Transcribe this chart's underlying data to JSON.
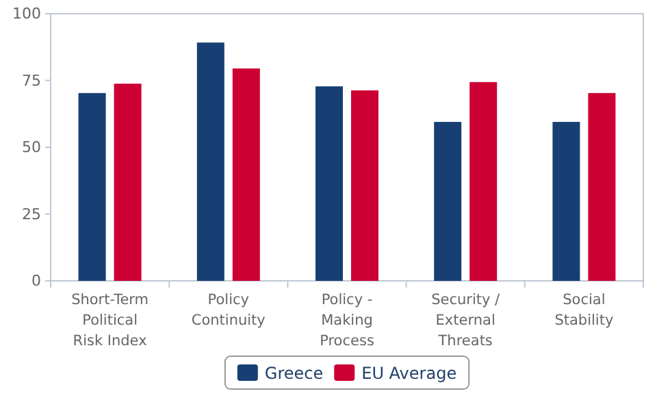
{
  "chart_data": {
    "type": "bar",
    "categories": [
      "Short-Term Political Risk Index",
      "Policy Continuity",
      "Policy - Making Process",
      "Security / External Threats",
      "Social Stability"
    ],
    "series": [
      {
        "name": "Greece",
        "color": "#173f73",
        "values": [
          70.3,
          89.2,
          72.8,
          59.5,
          59.5
        ]
      },
      {
        "name": "EU Average",
        "color": "#cc0033",
        "values": [
          73.8,
          79.5,
          71.3,
          74.4,
          70.3
        ]
      }
    ],
    "ylim": [
      0,
      100
    ],
    "yticks": [
      0,
      25,
      50,
      75,
      100
    ],
    "grid": false,
    "legend": "bottom"
  }
}
